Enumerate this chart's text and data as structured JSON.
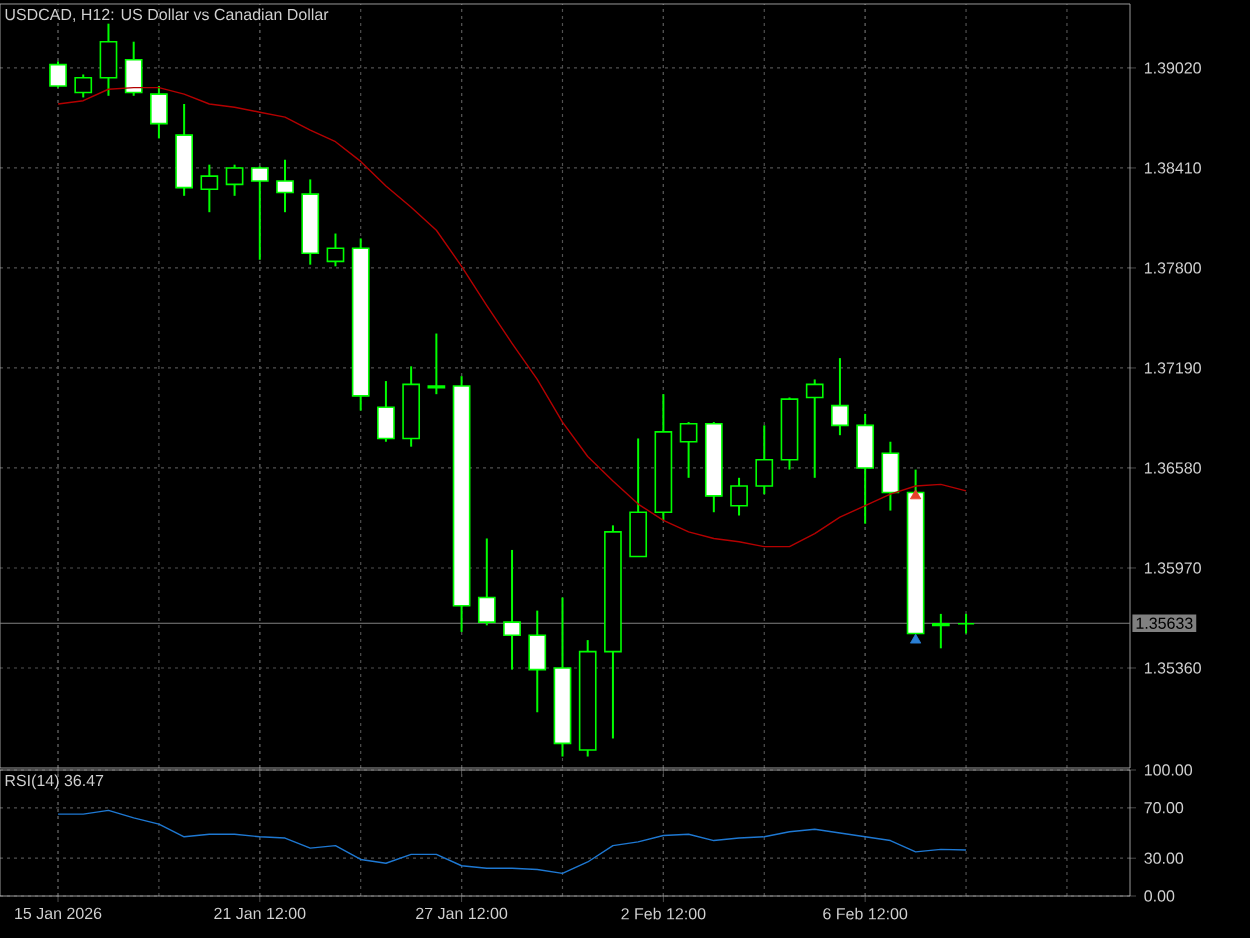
{
  "chart_data": [
    {
      "type": "candlestick",
      "title": "USDCAD, H12:  US Dollar vs Canadian Dollar",
      "categories": [
        null,
        null,
        null,
        null,
        null,
        null,
        null,
        null,
        null,
        null,
        null,
        null,
        null,
        null,
        null,
        null,
        null,
        null,
        null,
        null,
        null,
        null,
        null,
        null,
        null,
        null,
        null,
        null,
        null,
        null,
        null,
        null,
        null,
        null,
        null,
        null,
        null
      ],
      "series": [
        {
          "type": "candlestick",
          "color": "#00ff00",
          "ohlc": [
            [
              1.3904,
              1.3906,
              1.389,
              1.3891
            ],
            [
              1.3887,
              1.3898,
              1.3884,
              1.3896
            ],
            [
              1.3896,
              1.3929,
              1.3885,
              1.3918
            ],
            [
              1.3907,
              1.3918,
              1.3885,
              1.3887
            ],
            [
              1.3886,
              1.3891,
              1.3859,
              1.3868
            ],
            [
              1.3861,
              1.388,
              1.3824,
              1.3829
            ],
            [
              1.3828,
              1.3843,
              1.3814,
              1.3836
            ],
            [
              1.3831,
              1.3843,
              1.3824,
              1.3841
            ],
            [
              1.3841,
              1.3842,
              1.3785,
              1.3833
            ],
            [
              1.3833,
              1.3846,
              1.3814,
              1.3826
            ],
            [
              1.3825,
              1.3834,
              1.3782,
              1.3789
            ],
            [
              1.3784,
              1.3801,
              1.3781,
              1.3792
            ],
            [
              1.3792,
              1.3798,
              1.3693,
              1.3702
            ],
            [
              1.3695,
              1.3711,
              1.3674,
              1.3676
            ],
            [
              1.3676,
              1.372,
              1.3671,
              1.3709
            ],
            [
              1.3707,
              1.374,
              1.3703,
              1.3708
            ],
            [
              1.3708,
              1.3714,
              1.3558,
              1.3574
            ],
            [
              1.3579,
              1.3615,
              1.3562,
              1.3564
            ],
            [
              1.3564,
              1.3608,
              1.3535,
              1.3556
            ],
            [
              1.3556,
              1.3571,
              1.3509,
              1.3535
            ],
            [
              1.3536,
              1.3579,
              1.3482,
              1.349
            ],
            [
              1.3486,
              1.3553,
              1.3482,
              1.3546
            ],
            [
              1.3546,
              1.3623,
              1.3493,
              1.3619
            ],
            [
              1.3604,
              1.3676,
              1.3604,
              1.3631
            ],
            [
              1.3631,
              1.3703,
              1.3626,
              1.368
            ],
            [
              1.3674,
              1.3686,
              1.3652,
              1.3685
            ],
            [
              1.3685,
              1.3686,
              1.3631,
              1.3641
            ],
            [
              1.3635,
              1.3652,
              1.3629,
              1.3647
            ],
            [
              1.3647,
              1.3684,
              1.3642,
              1.3663
            ],
            [
              1.3663,
              1.3701,
              1.3657,
              1.37
            ],
            [
              1.3701,
              1.3712,
              1.3652,
              1.3709
            ],
            [
              1.3696,
              1.3725,
              1.3678,
              1.3684
            ],
            [
              1.3684,
              1.3691,
              1.3624,
              1.3658
            ],
            [
              1.3667,
              1.3674,
              1.3632,
              1.3643
            ],
            [
              1.3643,
              1.3657,
              1.3557,
              1.3557
            ],
            [
              1.3562,
              1.3569,
              1.3548,
              1.3563
            ],
            [
              1.3563,
              1.3569,
              1.3557,
              1.3563
            ]
          ]
        },
        {
          "type": "line",
          "color": "#b40000",
          "values": [
            1.388,
            1.3882,
            1.3889,
            1.389,
            1.389,
            1.3886,
            1.388,
            1.3878,
            1.3875,
            1.3872,
            1.3864,
            1.3857,
            1.3845,
            1.383,
            1.3817,
            1.3803,
            1.3781,
            1.3757,
            1.3734,
            1.3712,
            1.3686,
            1.3665,
            1.365,
            1.3636,
            1.3626,
            1.3619,
            1.3615,
            1.3613,
            1.361,
            1.361,
            1.3618,
            1.3628,
            1.3635,
            1.3642,
            1.3647,
            1.3648,
            1.3644
          ]
        },
        {
          "type": "scatter",
          "color": "#e8402a",
          "marker": "triangle",
          "values": [
            null,
            null,
            null,
            null,
            null,
            null,
            null,
            null,
            null,
            null,
            null,
            null,
            null,
            null,
            null,
            null,
            null,
            null,
            null,
            null,
            null,
            null,
            null,
            null,
            null,
            null,
            null,
            null,
            null,
            null,
            null,
            null,
            null,
            null,
            1.3641,
            null,
            null
          ]
        },
        {
          "type": "scatter",
          "color": "#2a7fd4",
          "marker": "triangle",
          "values": [
            null,
            null,
            null,
            null,
            null,
            null,
            null,
            null,
            null,
            null,
            null,
            null,
            null,
            null,
            null,
            null,
            null,
            null,
            null,
            null,
            null,
            null,
            null,
            null,
            null,
            null,
            null,
            null,
            null,
            null,
            null,
            null,
            null,
            null,
            1.3553,
            null,
            null
          ]
        }
      ],
      "ylim": [
        1.3475,
        1.3941
      ],
      "yticks": [
        {
          "value": 1.3536,
          "label": "1.35360"
        },
        {
          "value": 1.3597,
          "label": "1.35970"
        },
        {
          "value": 1.3658,
          "label": "1.36580"
        },
        {
          "value": 1.3719,
          "label": "1.37190"
        },
        {
          "value": 1.378,
          "label": "1.37800"
        },
        {
          "value": 1.3841,
          "label": "1.38410"
        },
        {
          "value": 1.3902,
          "label": "1.39020"
        }
      ],
      "ref_lines": [
        {
          "axis": "y",
          "value": 1.35633,
          "label": "1.35633",
          "color": "#808080"
        }
      ],
      "grid": true,
      "tick_labels": "y"
    },
    {
      "type": "line",
      "title": "RSI(14) 36.47",
      "categories": [
        "15 Jan 2026",
        null,
        null,
        null,
        null,
        null,
        null,
        null,
        "21 Jan 12:00",
        null,
        null,
        null,
        null,
        null,
        null,
        null,
        "27 Jan 12:00",
        null,
        null,
        null,
        null,
        null,
        null,
        null,
        "2 Feb 12:00",
        null,
        null,
        null,
        null,
        null,
        null,
        null,
        "6 Feb 12:00",
        null,
        null,
        null,
        null
      ],
      "series": [
        {
          "color": "#1e78d2",
          "values": [
            65,
            65,
            68,
            62,
            57,
            47,
            49,
            49,
            47,
            46,
            38,
            40,
            29,
            26,
            33,
            33,
            24,
            22,
            22,
            21,
            18,
            27,
            40,
            43,
            48,
            49,
            44,
            46,
            47,
            51,
            53,
            50,
            47,
            44,
            35,
            37,
            36.47
          ]
        }
      ],
      "ylim": [
        0,
        100
      ],
      "yticks": [
        {
          "value": 0,
          "label": "0.00"
        },
        {
          "value": 30,
          "label": "30.00"
        },
        {
          "value": 70,
          "label": "70.00"
        },
        {
          "value": 100,
          "label": "100.00"
        }
      ],
      "grid": true
    }
  ]
}
